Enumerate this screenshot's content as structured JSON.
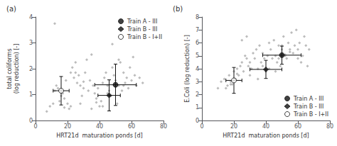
{
  "chart_data": [
    {
      "type": "scatter",
      "title": "(a)",
      "xlabel": "HRT21d  maturation ponds [d]",
      "ylabel": "total coliforms\n(log reduction) [-]",
      "xlim": [
        0,
        80
      ],
      "ylim": [
        0,
        4
      ],
      "xticks": [
        0,
        20,
        40,
        60,
        80
      ],
      "yticks": [
        0,
        1,
        2,
        3,
        4
      ],
      "grid": false,
      "legend": "upper right",
      "series": [
        {
          "type": "scatter",
          "color": "#aaaaaa",
          "marker": "diamond",
          "x": [
            7,
            9,
            11,
            12,
            13,
            14,
            15,
            16,
            17,
            18,
            19,
            20,
            21,
            22,
            23,
            24,
            25,
            26,
            27,
            28,
            29,
            30,
            31,
            32,
            33,
            34,
            35,
            36,
            37,
            38,
            39,
            40,
            41,
            42,
            43,
            44,
            45,
            46,
            47,
            48,
            49,
            50,
            51,
            52,
            53,
            54,
            55,
            56,
            57,
            58,
            59,
            60,
            61,
            62,
            63,
            65,
            67,
            12,
            18,
            25,
            35,
            45,
            52,
            38,
            28,
            22,
            48,
            55,
            42,
            30
          ],
          "y": [
            0.35,
            0.55,
            0.65,
            1.15,
            1.35,
            1.25,
            0.75,
            0.95,
            1.05,
            0.85,
            1.55,
            0.65,
            0.45,
            1.85,
            2.05,
            1.65,
            2.25,
            1.45,
            1.75,
            1.35,
            0.95,
            1.25,
            1.85,
            2.35,
            1.15,
            1.55,
            2.55,
            1.35,
            1.05,
            0.85,
            1.25,
            0.55,
            0.75,
            1.45,
            1.65,
            1.85,
            1.35,
            1.15,
            0.95,
            2.05,
            1.75,
            1.55,
            0.65,
            1.35,
            2.25,
            1.15,
            1.85,
            1.45,
            1.65,
            1.25,
            2.05,
            1.55,
            2.45,
            1.75,
            1.35,
            1.65,
            1.45,
            3.75,
            0.5,
            1.85,
            0.45,
            1.05,
            2.35,
            0.7,
            0.65,
            0.55,
            2.95,
            1.35,
            0.55,
            1.5
          ]
        },
        {
          "type": "scatter",
          "name": "Train A - III",
          "color": "#111111",
          "marker": "circle",
          "x": [
            50
          ],
          "y": [
            1.38
          ],
          "xerr": [
            13
          ],
          "yerr": [
            0.8
          ]
        },
        {
          "type": "scatter",
          "name": "Train B - III",
          "color": "#111111",
          "marker": "diamond",
          "x": [
            46
          ],
          "y": [
            0.97
          ],
          "xerr": [
            7
          ],
          "yerr": [
            0.6
          ]
        },
        {
          "type": "scatter",
          "name": "Train B - I+II",
          "color": "#111111",
          "marker": "open_circle",
          "x": [
            16
          ],
          "y": [
            1.15
          ],
          "xerr": [
            5
          ],
          "yerr": [
            0.55
          ]
        }
      ]
    },
    {
      "type": "scatter",
      "title": "(b)",
      "xlabel": "HRT21d  maturation ponds [d]",
      "ylabel": "E.Coli (log reduction) [-]",
      "xlim": [
        0,
        80
      ],
      "ylim": [
        0,
        8
      ],
      "xticks": [
        0,
        20,
        40,
        60,
        80
      ],
      "yticks": [
        0,
        1,
        2,
        3,
        4,
        5,
        6,
        7,
        8
      ],
      "grid": false,
      "legend": "lower right",
      "series": [
        {
          "type": "scatter",
          "color": "#aaaaaa",
          "marker": "diamond",
          "x": [
            10,
            12,
            14,
            15,
            16,
            17,
            18,
            19,
            20,
            21,
            22,
            23,
            24,
            25,
            26,
            27,
            28,
            29,
            30,
            31,
            32,
            33,
            34,
            35,
            36,
            37,
            38,
            39,
            40,
            41,
            42,
            43,
            44,
            45,
            46,
            47,
            48,
            49,
            50,
            51,
            52,
            53,
            54,
            55,
            56,
            57,
            58,
            59,
            60,
            61,
            62,
            63,
            64,
            65,
            66,
            67,
            18,
            22,
            30,
            38,
            48,
            55,
            25,
            42,
            52,
            60,
            35,
            46,
            28,
            50
          ],
          "y": [
            2.5,
            3.0,
            3.2,
            2.5,
            2.7,
            3.5,
            3.0,
            2.8,
            3.8,
            3.2,
            4.0,
            3.5,
            4.2,
            4.5,
            3.8,
            5.0,
            4.8,
            4.2,
            3.5,
            4.0,
            5.2,
            4.8,
            5.5,
            4.0,
            5.8,
            4.5,
            4.2,
            4.8,
            3.8,
            5.0,
            6.0,
            5.5,
            4.8,
            6.2,
            5.0,
            4.5,
            5.8,
            4.2,
            5.5,
            6.5,
            5.0,
            4.8,
            6.0,
            5.5,
            6.8,
            5.2,
            5.8,
            7.0,
            5.5,
            6.0,
            4.5,
            5.0,
            6.5,
            5.8,
            4.2,
            5.5,
            2.8,
            3.6,
            4.5,
            5.2,
            4.8,
            5.3,
            6.2,
            4.0,
            5.1,
            4.8,
            3.2,
            3.8,
            6.5,
            5.8
          ]
        },
        {
          "type": "scatter",
          "name": "Train A - III",
          "color": "#111111",
          "marker": "circle",
          "x": [
            50
          ],
          "y": [
            5.05
          ],
          "xerr": [
            12
          ],
          "yerr": [
            0.7
          ]
        },
        {
          "type": "scatter",
          "name": "Train B - III",
          "color": "#111111",
          "marker": "diamond",
          "x": [
            40
          ],
          "y": [
            3.95
          ],
          "xerr": [
            10
          ],
          "yerr": [
            0.7
          ]
        },
        {
          "type": "scatter",
          "name": "Train B - I+II",
          "color": "#111111",
          "marker": "open_circle",
          "x": [
            20
          ],
          "y": [
            3.1
          ],
          "xerr": [
            5
          ],
          "yerr": [
            1.0
          ]
        }
      ]
    }
  ]
}
